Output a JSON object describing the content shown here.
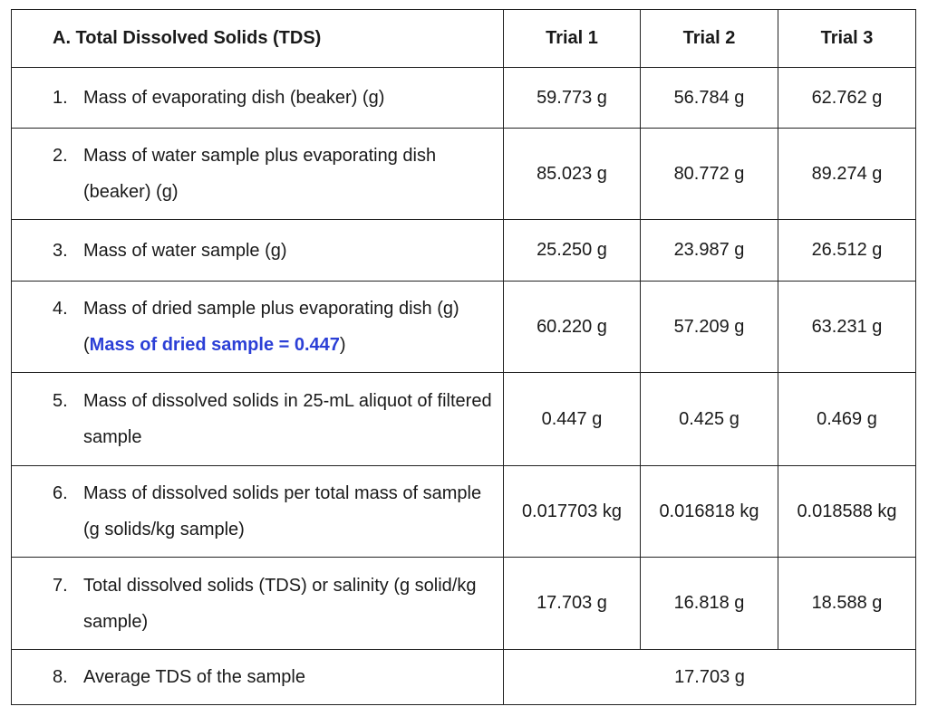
{
  "table": {
    "header": [
      "A. Total Dissolved Solids (TDS)",
      "Trial 1",
      "Trial 2",
      "Trial 3"
    ],
    "rows": [
      {
        "number": "1.",
        "label": "Mass of evaporating dish (beaker) (g)",
        "values": [
          "59.773 g",
          "56.784 g",
          "62.762 g"
        ]
      },
      {
        "number": "2.",
        "label": "Mass of water sample plus evaporating dish (beaker) (g)",
        "values": [
          "85.023 g",
          "80.772 g",
          "89.274 g"
        ]
      },
      {
        "number": "3.",
        "label": "Mass of water sample (g)",
        "values": [
          "25.250 g",
          "23.987 g",
          "26.512 g"
        ]
      },
      {
        "number": "4.",
        "label": "Mass of dried sample plus evaporating dish (g) (",
        "note": "Mass of dried sample = 0.447",
        "label_end": ")",
        "values": [
          "60.220 g",
          "57.209 g",
          "63.231 g"
        ]
      },
      {
        "number": "5.",
        "label": "Mass of dissolved solids in 25-mL aliquot of filtered sample",
        "values": [
          "0.447 g",
          "0.425 g",
          "0.469 g"
        ]
      },
      {
        "number": "6.",
        "label": "Mass of dissolved solids per total mass of sample (g solids/kg sample)",
        "values": [
          "0.017703 kg",
          "0.016818 kg",
          "0.018588 kg"
        ]
      },
      {
        "number": "7.",
        "label": "Total dissolved solids (TDS) or salinity (g solid/kg sample)",
        "values": [
          "17.703 g",
          "16.818 g",
          "18.588 g"
        ]
      },
      {
        "number": "8.",
        "label": "Average TDS of the sample",
        "values": [
          "17.703 g"
        ]
      }
    ]
  }
}
